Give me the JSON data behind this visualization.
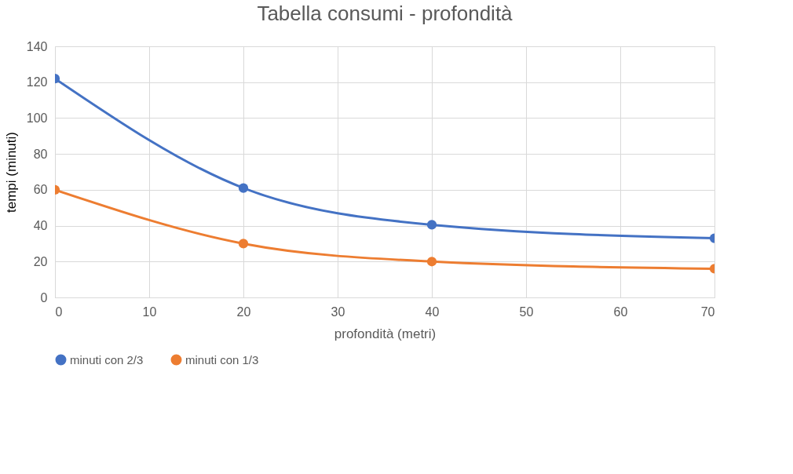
{
  "chart_data": {
    "type": "line",
    "title": "Tabella consumi - profondità",
    "xlabel": "profondità (metri)",
    "ylabel": "tempi (minuti)",
    "x": [
      0,
      20,
      40,
      70
    ],
    "series": [
      {
        "name": "minuti con 2/3",
        "color": "#4472c4",
        "values": [
          122,
          61,
          40.5,
          33
        ]
      },
      {
        "name": "minuti con 1/3",
        "color": "#ed7d31",
        "values": [
          60,
          30,
          20,
          16
        ]
      }
    ],
    "xlim": [
      0,
      70
    ],
    "xticks": [
      0,
      10,
      20,
      30,
      40,
      50,
      60,
      70
    ],
    "ylim": [
      0,
      140
    ],
    "yticks": [
      0,
      20,
      40,
      60,
      80,
      100,
      120,
      140
    ],
    "grid": true,
    "legend": "bottom",
    "marker": "circle",
    "line_style": "solid"
  }
}
